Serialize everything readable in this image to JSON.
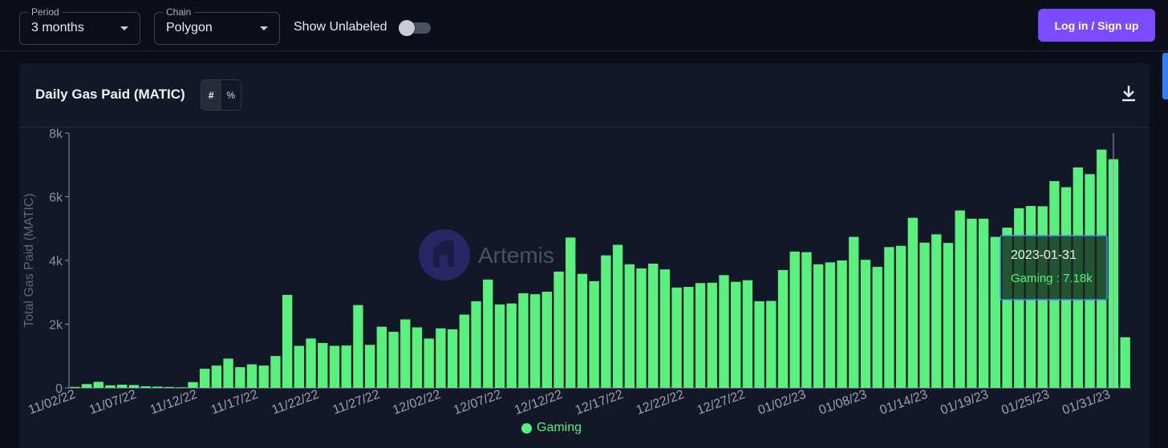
{
  "filters": {
    "period": {
      "label": "Period",
      "value": "3 months"
    },
    "chain": {
      "label": "Chain",
      "value": "Polygon"
    },
    "show_unlabeled": {
      "label": "Show Unlabeled",
      "on": false
    }
  },
  "auth": {
    "login_label": "Log in / Sign up"
  },
  "card": {
    "title": "Daily Gas Paid (MATIC)",
    "format_options": [
      "#",
      "%"
    ],
    "format_active": "#",
    "download_icon": "download-icon"
  },
  "watermark": {
    "text": "Artemis"
  },
  "tooltip": {
    "date": "2023-01-31",
    "series_text": "Gaming : 7.18k"
  },
  "colors": {
    "bar": "#59f07d",
    "accent": "#7b4cff",
    "background": "#0b0f1a"
  },
  "chart_data": {
    "type": "bar",
    "ylabel": "Total Gas Paid (MATIC)",
    "ylim": [
      0,
      8000
    ],
    "yticks": [
      "0",
      "2k",
      "4k",
      "6k",
      "8k"
    ],
    "xtick_labels": [
      "11/02/22",
      "11/07/22",
      "11/12/22",
      "11/17/22",
      "11/22/22",
      "11/27/22",
      "12/02/22",
      "12/07/22",
      "12/12/22",
      "12/17/22",
      "12/22/22",
      "12/27/22",
      "01/02/23",
      "01/08/23",
      "01/14/23",
      "01/19/23",
      "01/25/23",
      "01/31/23"
    ],
    "legend": [
      "Gaming"
    ],
    "series": [
      {
        "name": "Gaming",
        "values": [
          30,
          120,
          190,
          80,
          100,
          90,
          50,
          40,
          30,
          20,
          180,
          600,
          700,
          920,
          650,
          740,
          700,
          1000,
          2920,
          1320,
          1550,
          1410,
          1320,
          1330,
          2600,
          1350,
          1920,
          1760,
          2150,
          1900,
          1550,
          1870,
          1840,
          2300,
          2720,
          3400,
          2620,
          2650,
          2970,
          2940,
          3020,
          3650,
          4720,
          3580,
          3350,
          4160,
          4490,
          3880,
          3750,
          3900,
          3720,
          3150,
          3170,
          3290,
          3300,
          3540,
          3330,
          3380,
          2720,
          2730,
          3700,
          4280,
          4260,
          3880,
          3940,
          4000,
          4740,
          4020,
          3800,
          4420,
          4460,
          5340,
          4560,
          4820,
          4550,
          5570,
          5310,
          5310,
          4740,
          5030,
          5640,
          5710,
          5700,
          6490,
          6300,
          6920,
          6710,
          7480,
          7180,
          1590
        ]
      }
    ]
  }
}
